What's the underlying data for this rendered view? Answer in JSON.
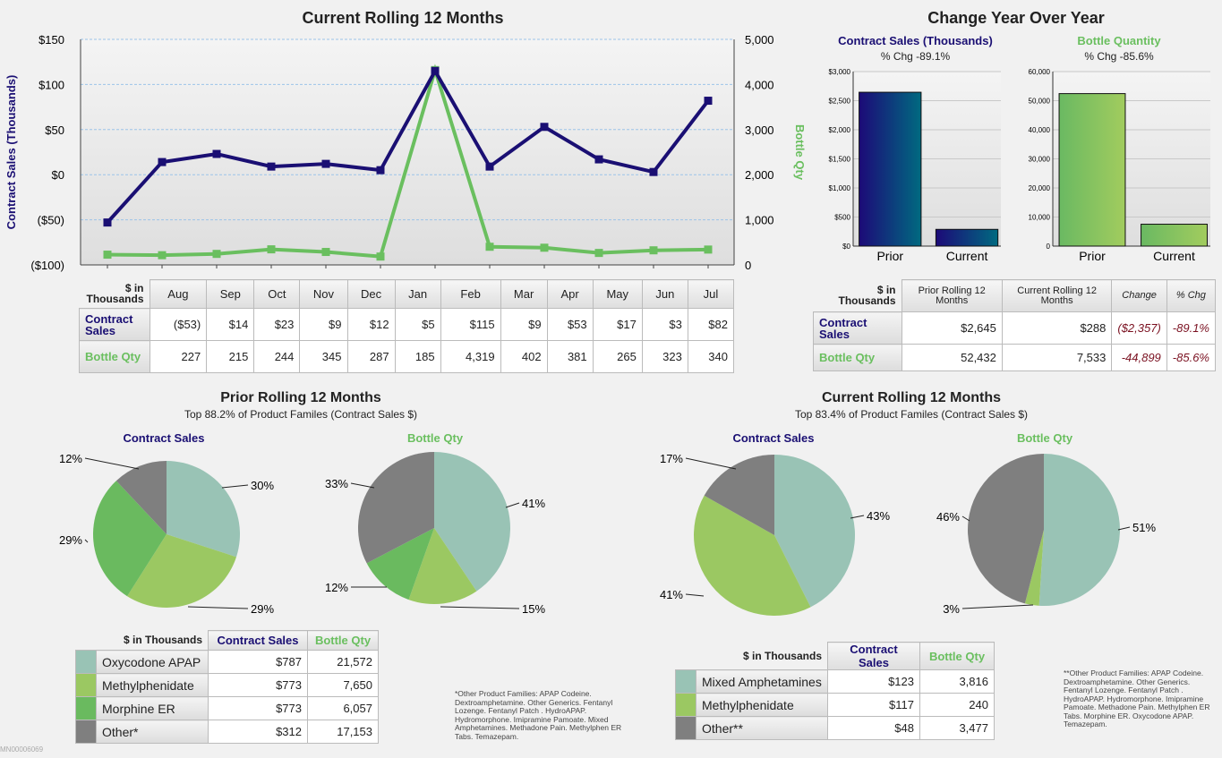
{
  "titles": {
    "rolling": "Current Rolling 12 Months",
    "yoy": "Change Year Over Year",
    "prior_pies": "Prior Rolling 12 Months",
    "prior_pies_sub": "Top 88.2% of Product Familes (Contract Sales $)",
    "current_pies": "Current Rolling 12 Months",
    "current_pies_sub": "Top 83.4% of Product Familes (Contract Sales $)",
    "cs": "Contract Sales",
    "bq": "Bottle Qty"
  },
  "yoy_headers": {
    "cs": "Contract Sales (Thousands)",
    "cs_pct": "% Chg -89.1%",
    "bq": "Bottle Quantity",
    "bq_pct": "% Chg -85.6%"
  },
  "colors": {
    "navy": "#1a0f73",
    "green": "#6abf5f",
    "teal": "#99c3b5",
    "lightgreen": "#9bc862",
    "midgreen": "#6aba5f",
    "gray": "#7f7f7f"
  },
  "chart_data": [
    {
      "type": "line",
      "title": "Current Rolling 12 Months",
      "categories": [
        "Aug",
        "Sep",
        "Oct",
        "Nov",
        "Dec",
        "Jan",
        "Feb",
        "Mar",
        "Apr",
        "May",
        "Jun",
        "Jul"
      ],
      "ylabel": "Contract Sales (Thousands)",
      "y2label": "Bottle Qty",
      "ylim": [
        -100,
        150
      ],
      "y2lim": [
        0,
        5000
      ],
      "yticks": [
        "($100)",
        "($50)",
        "$0",
        "$50",
        "$100",
        "$150"
      ],
      "y2ticks": [
        "0",
        "1,000",
        "2,000",
        "3,000",
        "4,000",
        "5,000"
      ],
      "series": [
        {
          "name": "Contract Sales",
          "axis": "left",
          "values": [
            -53,
            14,
            23,
            9,
            12,
            5,
            115,
            9,
            53,
            17,
            3,
            82
          ]
        },
        {
          "name": "Bottle Qty",
          "axis": "right",
          "values": [
            227,
            215,
            244,
            345,
            287,
            185,
            4319,
            402,
            381,
            265,
            323,
            340
          ]
        }
      ]
    },
    {
      "type": "bar",
      "title": "Contract Sales (Thousands)",
      "categories": [
        "Prior",
        "Current"
      ],
      "values": [
        2645,
        288
      ],
      "ylim": [
        0,
        3000
      ],
      "yticks": [
        "$0",
        "$500",
        "$1,000",
        "$1,500",
        "$2,000",
        "$2,500",
        "$3,000"
      ]
    },
    {
      "type": "bar",
      "title": "Bottle Quantity",
      "categories": [
        "Prior",
        "Current"
      ],
      "values": [
        52432,
        7533
      ],
      "ylim": [
        0,
        60000
      ],
      "yticks": [
        "0",
        "10,000",
        "20,000",
        "30,000",
        "40,000",
        "50,000",
        "60,000"
      ]
    },
    {
      "type": "pie",
      "title": "Prior Contract Sales",
      "labels": [
        "Oxycodone APAP",
        "Methylphenidate",
        "Morphine ER",
        "Other*"
      ],
      "values": [
        30,
        29,
        29,
        12
      ]
    },
    {
      "type": "pie",
      "title": "Prior Bottle Qty",
      "labels": [
        "Oxycodone APAP",
        "Methylphenidate",
        "Morphine ER",
        "Other*"
      ],
      "values": [
        41,
        15,
        12,
        33
      ]
    },
    {
      "type": "pie",
      "title": "Current Contract Sales",
      "labels": [
        "Mixed Amphetamines",
        "Methylphenidate",
        "Other**"
      ],
      "values": [
        43,
        41,
        17
      ]
    },
    {
      "type": "pie",
      "title": "Current Bottle Qty",
      "labels": [
        "Mixed Amphetamines",
        "Methylphenidate",
        "Other**"
      ],
      "values": [
        51,
        3,
        46
      ]
    }
  ],
  "monthly_table": {
    "corner": "$ in Thousands",
    "months": [
      "Aug",
      "Sep",
      "Oct",
      "Nov",
      "Dec",
      "Jan",
      "Feb",
      "Mar",
      "Apr",
      "May",
      "Jun",
      "Jul"
    ],
    "rows": [
      {
        "label": "Contract Sales",
        "values": [
          "($53)",
          "$14",
          "$23",
          "$9",
          "$12",
          "$5",
          "$115",
          "$9",
          "$53",
          "$17",
          "$3",
          "$82"
        ]
      },
      {
        "label": "Bottle Qty",
        "values": [
          "227",
          "215",
          "244",
          "345",
          "287",
          "185",
          "4,319",
          "402",
          "381",
          "265",
          "323",
          "340"
        ]
      }
    ]
  },
  "yoy_table": {
    "corner": "$ in Thousands",
    "headers": [
      "Prior Rolling 12 Months",
      "Current Rolling 12 Months",
      "Change",
      "% Chg"
    ],
    "rows": [
      {
        "label": "Contract Sales",
        "values": [
          "$2,645",
          "$288",
          "($2,357)",
          "-89.1%"
        ]
      },
      {
        "label": "Bottle Qty",
        "values": [
          "52,432",
          "7,533",
          "-44,899",
          "-85.6%"
        ]
      }
    ]
  },
  "prior_legend": {
    "corner": "$ in Thousands",
    "headers": [
      "Contract Sales",
      "Bottle Qty"
    ],
    "rows": [
      {
        "name": "Oxycodone APAP",
        "cs": "$787",
        "bq": "21,572"
      },
      {
        "name": "Methylphenidate",
        "cs": "$773",
        "bq": "7,650"
      },
      {
        "name": "Morphine ER",
        "cs": "$773",
        "bq": "6,057"
      },
      {
        "name": "Other*",
        "cs": "$312",
        "bq": "17,153"
      }
    ]
  },
  "current_legend": {
    "corner": "$ in Thousands",
    "headers": [
      "Contract Sales",
      "Bottle Qty"
    ],
    "rows": [
      {
        "name": "Mixed Amphetamines",
        "cs": "$123",
        "bq": "3,816"
      },
      {
        "name": "Methylphenidate",
        "cs": "$117",
        "bq": "240"
      },
      {
        "name": "Other**",
        "cs": "$48",
        "bq": "3,477"
      }
    ]
  },
  "notes": {
    "prior": "*Other Product Families: APAP Codeine. Dextroamphetamine. Other Generics. Fentanyl Lozenge. Fentanyl Patch . HydroAPAP. Hydromorphone. Imipramine Pamoate. Mixed Amphetamines. Methadone Pain. Methylphen ER Tabs. Temazepam.",
    "current": "**Other Product Families: APAP Codeine. Dextroamphetamine. Other Generics. Fentanyl Lozenge. Fentanyl Patch . HydroAPAP. Hydromorphone. Imipramine Pamoate. Methadone Pain. Methylphen ER Tabs. Morphine ER. Oxycodone APAP. Temazepam."
  },
  "report_id": "MN00006069"
}
